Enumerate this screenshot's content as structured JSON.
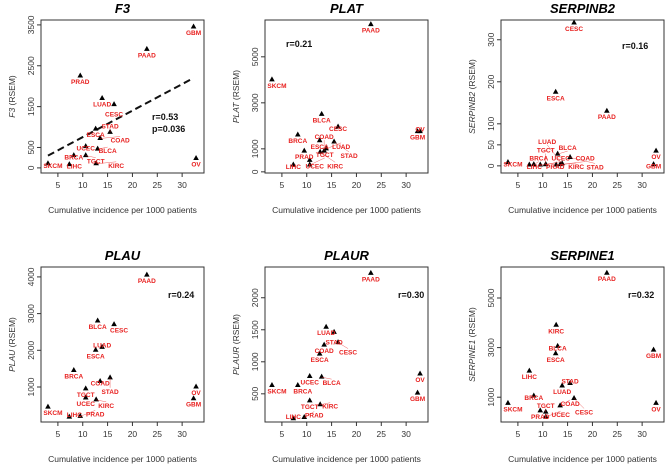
{
  "chart_data": [
    {
      "type": "scatter",
      "title": "F3",
      "xlabel": "Cumulative incidence per 1000 patients",
      "ylabel": "(RSEM)",
      "xlim": [
        1.6,
        34.4
      ],
      "ylim": [
        -125,
        3620
      ],
      "xticks": [
        5,
        10,
        15,
        20,
        25,
        30
      ],
      "yticks": [
        0,
        500,
        1500,
        2500,
        3500
      ],
      "stats": [
        "r=0.53",
        "p=0.036"
      ],
      "regression": {
        "x": [
          3,
          32.3
        ],
        "y": [
          300,
          2200
        ]
      },
      "points": [
        [
          "SKCM",
          3,
          100
        ],
        [
          "LIHC",
          7.3,
          80
        ],
        [
          "BRCA",
          8.2,
          300
        ],
        [
          "PRAD",
          9.5,
          2250
        ],
        [
          "UCEC",
          10.6,
          520
        ],
        [
          "TGCT",
          10.6,
          300
        ],
        [
          "ESCA",
          12.6,
          950
        ],
        [
          "KIRC",
          12.7,
          100
        ],
        [
          "BLCA",
          13.0,
          460
        ],
        [
          "COAD",
          13.5,
          720
        ],
        [
          "LUAD",
          13.9,
          1700
        ],
        [
          "STAD",
          15.5,
          870
        ],
        [
          "CESC",
          16.3,
          1550
        ],
        [
          "PAAD",
          22.9,
          2900
        ],
        [
          "GBM",
          32.3,
          3450
        ],
        [
          "OV",
          32.8,
          230
        ]
      ]
    },
    {
      "type": "scatter",
      "title": "PLAT",
      "xlabel": "Cumulative incidence per 1000 patients",
      "ylabel": "(RSEM)",
      "xlim": [
        1.6,
        34.4
      ],
      "ylim": [
        -50,
        6600
      ],
      "xticks": [
        5,
        10,
        15,
        20,
        25,
        30
      ],
      "yticks": [
        0,
        1000,
        3000,
        5000
      ],
      "stats": [
        "r=0.21"
      ],
      "points": [
        [
          "SKCM",
          3,
          4000
        ],
        [
          "LIHC",
          7.3,
          300
        ],
        [
          "BRCA",
          8.2,
          1600
        ],
        [
          "PRAD",
          9.5,
          900
        ],
        [
          "UCEC",
          10.6,
          500
        ],
        [
          "TGCT",
          10.6,
          300
        ],
        [
          "ESCA",
          12.6,
          1350
        ],
        [
          "KIRC",
          12.7,
          850
        ],
        [
          "BLCA",
          13.0,
          2500
        ],
        [
          "COAD",
          13.5,
          900
        ],
        [
          "LUAD",
          13.9,
          1000
        ],
        [
          "STAD",
          15.5,
          1300
        ],
        [
          "CESC",
          16.3,
          1950
        ],
        [
          "PAAD",
          22.9,
          6400
        ],
        [
          "GBM",
          32.3,
          1750
        ],
        [
          "OV",
          32.8,
          1750
        ]
      ]
    },
    {
      "type": "scatter",
      "title": "SERPINB2",
      "xlabel": "Cumulative incidence per 1000 patients",
      "ylabel": "(RSEM)",
      "xlim": [
        1.6,
        34.4
      ],
      "ylim": [
        -17,
        347
      ],
      "xticks": [
        5,
        10,
        15,
        20,
        25,
        30
      ],
      "yticks": [
        0,
        50,
        100,
        200,
        300
      ],
      "stats": [
        "r=0.16"
      ],
      "points": [
        [
          "SKCM",
          3,
          8
        ],
        [
          "LIHC",
          7.3,
          2
        ],
        [
          "BRCA",
          8.2,
          3
        ],
        [
          "PRAD",
          9.5,
          2
        ],
        [
          "UCEC",
          10.6,
          3
        ],
        [
          "TGCT",
          10.6,
          3
        ],
        [
          "ESCA",
          12.6,
          175
        ],
        [
          "KIRC",
          12.7,
          2
        ],
        [
          "BLCA",
          13.0,
          28
        ],
        [
          "COAD",
          13.5,
          3
        ],
        [
          "LUAD",
          13.9,
          5
        ],
        [
          "STAD",
          15.5,
          20
        ],
        [
          "CESC",
          16.3,
          340
        ],
        [
          "PAAD",
          22.9,
          130
        ],
        [
          "GBM",
          32.3,
          3
        ],
        [
          "OV",
          32.8,
          35
        ]
      ]
    },
    {
      "type": "scatter",
      "title": "PLAU",
      "xlabel": "Cumulative incidence per 1000 patients",
      "ylabel": "(RSEM)",
      "xlim": [
        1.6,
        34.4
      ],
      "ylim": [
        46,
        4270
      ],
      "xticks": [
        5,
        10,
        15,
        20,
        25,
        30
      ],
      "yticks": [
        1000,
        2000,
        3000,
        4000
      ],
      "stats": [
        "r=0.24"
      ],
      "points": [
        [
          "SKCM",
          3,
          450
        ],
        [
          "LIHC",
          7.3,
          180
        ],
        [
          "BRCA",
          8.2,
          1450
        ],
        [
          "PRAD",
          9.5,
          200
        ],
        [
          "UCEC",
          10.6,
          700
        ],
        [
          "TGCT",
          10.6,
          950
        ],
        [
          "ESCA",
          12.6,
          2000
        ],
        [
          "KIRC",
          12.7,
          650
        ],
        [
          "BLCA",
          13.0,
          2800
        ],
        [
          "COAD",
          13.5,
          1150
        ],
        [
          "LUAD",
          13.9,
          2080
        ],
        [
          "STAD",
          15.5,
          1250
        ],
        [
          "CESC",
          16.3,
          2700
        ],
        [
          "PAAD",
          22.9,
          4050
        ],
        [
          "GBM",
          32.3,
          680
        ],
        [
          "OV",
          32.8,
          1000
        ]
      ]
    },
    {
      "type": "scatter",
      "title": "PLAUR",
      "xlabel": "Cumulative incidence per 1000 patients",
      "ylabel": "(RSEM)",
      "xlim": [
        1.6,
        34.4
      ],
      "ylim": [
        60,
        2480
      ],
      "xticks": [
        5,
        10,
        15,
        20,
        25,
        30
      ],
      "yticks": [
        500,
        1000,
        1500,
        2000
      ],
      "stats": [
        "r=0.30"
      ],
      "points": [
        [
          "SKCM",
          3,
          630
        ],
        [
          "LIHC",
          7.3,
          110
        ],
        [
          "BRCA",
          8.2,
          630
        ],
        [
          "PRAD",
          9.5,
          130
        ],
        [
          "UCEC",
          10.6,
          770
        ],
        [
          "TGCT",
          10.6,
          390
        ],
        [
          "ESCA",
          12.6,
          1120
        ],
        [
          "KIRC",
          12.7,
          330
        ],
        [
          "BLCA",
          13.0,
          760
        ],
        [
          "COAD",
          13.5,
          1260
        ],
        [
          "LUAD",
          13.9,
          1540
        ],
        [
          "STAD",
          15.5,
          1460
        ],
        [
          "CESC",
          16.3,
          1300
        ],
        [
          "PAAD",
          22.9,
          2380
        ],
        [
          "GBM",
          32.3,
          510
        ],
        [
          "OV",
          32.8,
          810
        ]
      ]
    },
    {
      "type": "scatter",
      "title": "SERPINE1",
      "xlabel": "Cumulative incidence per 1000 patients",
      "ylabel": "(RSEM)",
      "xlim": [
        1.6,
        34.4
      ],
      "ylim": [
        0,
        6250
      ],
      "xticks": [
        5,
        10,
        15,
        20,
        25,
        30
      ],
      "yticks": [
        1000,
        3000,
        5000
      ],
      "stats": [
        "r=0.32"
      ],
      "points": [
        [
          "SKCM",
          3,
          750
        ],
        [
          "LIHC",
          7.3,
          2050
        ],
        [
          "BRCA",
          8.2,
          1050
        ],
        [
          "PRAD",
          9.5,
          450
        ],
        [
          "UCEC",
          10.6,
          200
        ],
        [
          "TGCT",
          10.6,
          400
        ],
        [
          "ESCA",
          12.6,
          2750
        ],
        [
          "KIRC",
          12.7,
          3900
        ],
        [
          "BLCA",
          13.0,
          3050
        ],
        [
          "COAD",
          13.5,
          650
        ],
        [
          "LUAD",
          13.9,
          1450
        ],
        [
          "STAD",
          15.5,
          1550
        ],
        [
          "CESC",
          16.3,
          950
        ],
        [
          "PAAD",
          22.9,
          6000
        ],
        [
          "GBM",
          32.3,
          2900
        ],
        [
          "OV",
          32.8,
          750
        ]
      ]
    }
  ],
  "colors": {
    "label": "#e8201f",
    "marker": "#000000"
  }
}
